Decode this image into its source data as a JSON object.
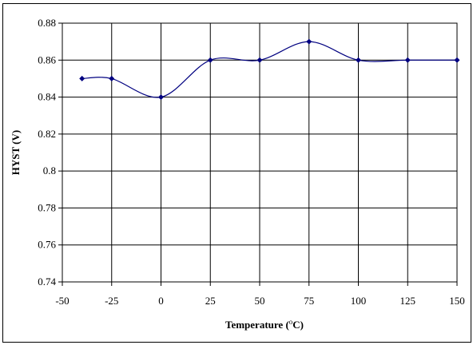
{
  "chart_data": {
    "type": "line",
    "title": "",
    "xlabel": "Temperature (",
    "xlabel_sup": "o",
    "xlabel_suffix": "C)",
    "ylabel": "HYST (V)",
    "xlim": [
      -50,
      150
    ],
    "ylim": [
      0.74,
      0.88
    ],
    "xticks": [
      -50,
      -25,
      0,
      25,
      50,
      75,
      100,
      125,
      150
    ],
    "xtick_labels": [
      "-50",
      "-25",
      "0",
      "25",
      "50",
      "75",
      "100",
      "125",
      "150"
    ],
    "yticks": [
      0.74,
      0.76,
      0.78,
      0.8,
      0.82,
      0.84,
      0.86,
      0.88
    ],
    "ytick_labels": [
      "0.74",
      "0.76",
      "0.78",
      "0.82",
      "0.84",
      "0.86",
      "0.88"
    ],
    "ytick_labels_full": [
      "0.74",
      "0.76",
      "0.78",
      "0.8",
      "0.82",
      "0.84",
      "0.86",
      "0.88"
    ],
    "grid": true,
    "legend": "none",
    "line_color": "#000080",
    "series": [
      {
        "x": [
          -40,
          -25,
          0,
          25,
          50,
          75,
          100,
          125,
          150
        ],
        "y": [
          0.85,
          0.85,
          0.84,
          0.86,
          0.86,
          0.87,
          0.86,
          0.86,
          0.86
        ]
      }
    ]
  }
}
